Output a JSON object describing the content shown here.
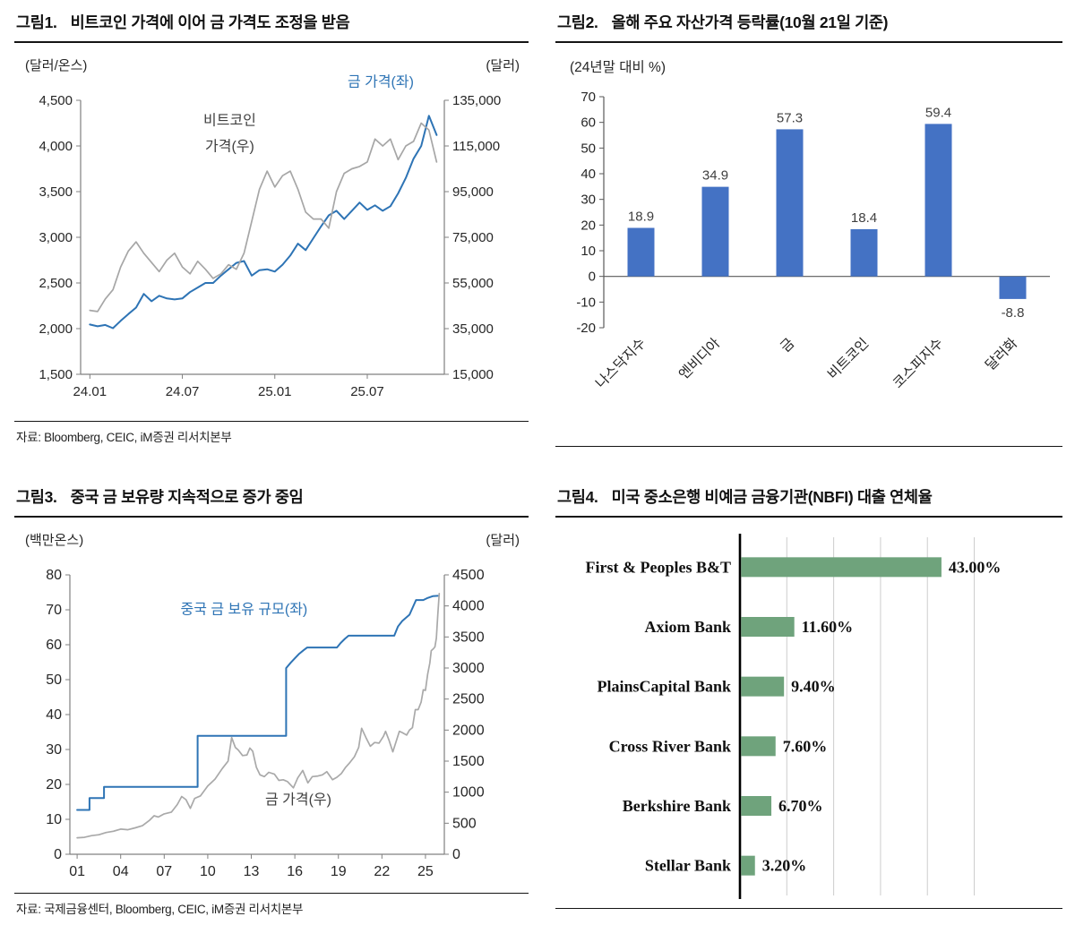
{
  "page": {
    "background": "#ffffff"
  },
  "panels": {
    "fig1": {
      "no": "그림1.",
      "title": "비트코인 가격에 이어 금 가격도 조정을 받음",
      "source": "자료: Bloomberg, CEIC, iM증권 리서치본부"
    },
    "fig2": {
      "no": "그림2.",
      "title": "올해 주요 자산가격 등락률(10월 21일 기준)"
    },
    "fig3": {
      "no": "그림3.",
      "title": "중국 금 보유량 지속적으로 증가 중임",
      "source": "자료: 국제금융센터, Bloomberg, CEIC, iM증권 리서치본부"
    },
    "fig4": {
      "no": "그림4.",
      "title": "미국 중소은행 비예금 금융기관(NBFI) 대출 연체율"
    }
  },
  "chart_data": [
    {
      "id": "fig1",
      "type": "dual_line",
      "title": "비트코인 가격에 이어 금 가격도 조정을 받음",
      "unit_left": "(달러/온스)",
      "unit_right": "(달러)",
      "x_range": [
        -0.6,
        23.0
      ],
      "x_ticks": [
        {
          "t": 0,
          "label": "24.01"
        },
        {
          "t": 6,
          "label": "24.07"
        },
        {
          "t": 12,
          "label": "25.01"
        },
        {
          "t": 18,
          "label": "25.07"
        }
      ],
      "axis_left": {
        "min": 1500,
        "max": 4500,
        "step": 500,
        "format": "comma"
      },
      "axis_right": {
        "min": 15000,
        "max": 135000,
        "step": 20000,
        "format": "comma"
      },
      "series": [
        {
          "name": "금 가격(좌)",
          "axis": "left",
          "color": "#2e74b5",
          "width": 2,
          "x0": 0,
          "dx": 0.5,
          "values": [
            2045,
            2025,
            2040,
            2005,
            2085,
            2160,
            2230,
            2380,
            2300,
            2360,
            2330,
            2320,
            2330,
            2400,
            2450,
            2500,
            2500,
            2580,
            2650,
            2720,
            2740,
            2580,
            2640,
            2650,
            2625,
            2700,
            2800,
            2930,
            2860,
            2990,
            3120,
            3240,
            3290,
            3200,
            3290,
            3380,
            3300,
            3350,
            3290,
            3340,
            3480,
            3650,
            3860,
            4000,
            4330,
            4120
          ]
        },
        {
          "name": "비트코인 가격(우)",
          "axis": "right",
          "color": "#a6a6a6",
          "width": 1.7,
          "x0": 0,
          "dx": 0.5,
          "values": [
            43000,
            42500,
            48000,
            52000,
            62000,
            69000,
            73000,
            68000,
            64000,
            60000,
            65000,
            68000,
            62000,
            59000,
            64500,
            61000,
            57000,
            59000,
            63000,
            61000,
            68000,
            82000,
            96000,
            104000,
            97000,
            102000,
            104000,
            96000,
            86000,
            83000,
            83000,
            79000,
            95000,
            103000,
            105000,
            106000,
            108000,
            118000,
            115000,
            118000,
            109000,
            115000,
            117000,
            125000,
            122000,
            108000
          ]
        }
      ],
      "annotations": [
        {
          "text": "비트코인",
          "color": "#3f3f3f",
          "fx": 0.41,
          "fy": 0.09,
          "size": 16
        },
        {
          "text": "가격(우)",
          "color": "#3f3f3f",
          "fx": 0.41,
          "fy": 0.185,
          "size": 16
        },
        {
          "text": "금 가격(좌)",
          "color": "#2e74b5",
          "fx": 0.825,
          "fy": -0.05,
          "size": 16
        }
      ]
    },
    {
      "id": "fig2",
      "type": "bar",
      "title": "올해 주요 자산가격 등락률(10월 21일 기준)",
      "unit": "(24년말 대비 %)",
      "axis": {
        "min": -20,
        "max": 70,
        "step": 10
      },
      "categories": [
        "나스닥지수",
        "엔비디아",
        "금",
        "비트코인",
        "코스피지수",
        "달러화"
      ],
      "values": [
        18.9,
        34.9,
        57.3,
        18.4,
        59.4,
        -8.8
      ],
      "bar_color": "#4472c4",
      "legend_position": "none",
      "grid": false
    },
    {
      "id": "fig3",
      "type": "dual_line",
      "title": "중국 금 보유량 지속적으로 증가 중임",
      "unit_left": "(백만온스)",
      "unit_right": "(달러)",
      "x_range": [
        2000.5,
        2026.3
      ],
      "x_ticks": [
        {
          "t": 2001,
          "label": "01"
        },
        {
          "t": 2004,
          "label": "04"
        },
        {
          "t": 2007,
          "label": "07"
        },
        {
          "t": 2010,
          "label": "10"
        },
        {
          "t": 2013,
          "label": "13"
        },
        {
          "t": 2016,
          "label": "16"
        },
        {
          "t": 2019,
          "label": "19"
        },
        {
          "t": 2022,
          "label": "22"
        },
        {
          "t": 2025,
          "label": "25"
        }
      ],
      "axis_left": {
        "min": 0,
        "max": 80,
        "step": 10,
        "format": "plain"
      },
      "axis_right": {
        "min": 0,
        "max": 4500,
        "step": 500,
        "format": "plain"
      },
      "series": [
        {
          "name": "중국 금 보유 규모(좌)",
          "axis": "left",
          "color": "#2e74b5",
          "width": 2,
          "points": [
            [
              2001.0,
              12.7
            ],
            [
              2001.85,
              12.7
            ],
            [
              2001.85,
              16.1
            ],
            [
              2002.85,
              16.1
            ],
            [
              2002.85,
              19.3
            ],
            [
              2009.3,
              19.3
            ],
            [
              2009.3,
              33.9
            ],
            [
              2015.4,
              33.9
            ],
            [
              2015.4,
              53.3
            ],
            [
              2015.7,
              54.8
            ],
            [
              2016.0,
              56.1
            ],
            [
              2016.3,
              57.4
            ],
            [
              2016.6,
              58.4
            ],
            [
              2016.85,
              59.2
            ],
            [
              2018.9,
              59.2
            ],
            [
              2019.15,
              60.5
            ],
            [
              2019.45,
              61.7
            ],
            [
              2019.7,
              62.6
            ],
            [
              2022.85,
              62.6
            ],
            [
              2023.1,
              65.2
            ],
            [
              2023.4,
              66.8
            ],
            [
              2023.9,
              68.6
            ],
            [
              2024.35,
              72.8
            ],
            [
              2024.85,
              72.8
            ],
            [
              2025.1,
              73.3
            ],
            [
              2025.5,
              73.9
            ],
            [
              2025.85,
              74.0
            ]
          ]
        },
        {
          "name": "금 가격(우)",
          "axis": "right",
          "color": "#a9a9a9",
          "width": 1.7,
          "points": [
            [
              2001.0,
              265
            ],
            [
              2001.5,
              272
            ],
            [
              2002.0,
              300
            ],
            [
              2002.5,
              315
            ],
            [
              2003.0,
              350
            ],
            [
              2003.5,
              370
            ],
            [
              2004.0,
              405
            ],
            [
              2004.5,
              395
            ],
            [
              2005.0,
              425
            ],
            [
              2005.5,
              460
            ],
            [
              2006.0,
              550
            ],
            [
              2006.3,
              620
            ],
            [
              2006.6,
              600
            ],
            [
              2007.0,
              650
            ],
            [
              2007.5,
              680
            ],
            [
              2007.9,
              800
            ],
            [
              2008.2,
              930
            ],
            [
              2008.5,
              880
            ],
            [
              2008.8,
              740
            ],
            [
              2009.1,
              900
            ],
            [
              2009.5,
              940
            ],
            [
              2010.0,
              1100
            ],
            [
              2010.5,
              1210
            ],
            [
              2011.0,
              1380
            ],
            [
              2011.4,
              1500
            ],
            [
              2011.65,
              1880
            ],
            [
              2011.9,
              1720
            ],
            [
              2012.1,
              1680
            ],
            [
              2012.4,
              1590
            ],
            [
              2012.7,
              1600
            ],
            [
              2012.9,
              1710
            ],
            [
              2013.1,
              1660
            ],
            [
              2013.35,
              1400
            ],
            [
              2013.6,
              1280
            ],
            [
              2013.9,
              1250
            ],
            [
              2014.2,
              1320
            ],
            [
              2014.6,
              1290
            ],
            [
              2014.9,
              1190
            ],
            [
              2015.2,
              1200
            ],
            [
              2015.5,
              1170
            ],
            [
              2015.9,
              1070
            ],
            [
              2016.2,
              1230
            ],
            [
              2016.55,
              1350
            ],
            [
              2016.9,
              1150
            ],
            [
              2017.2,
              1250
            ],
            [
              2017.6,
              1260
            ],
            [
              2017.9,
              1280
            ],
            [
              2018.2,
              1330
            ],
            [
              2018.6,
              1200
            ],
            [
              2018.9,
              1240
            ],
            [
              2019.2,
              1300
            ],
            [
              2019.5,
              1400
            ],
            [
              2019.8,
              1480
            ],
            [
              2020.1,
              1570
            ],
            [
              2020.4,
              1720
            ],
            [
              2020.6,
              2030
            ],
            [
              2020.9,
              1880
            ],
            [
              2021.2,
              1740
            ],
            [
              2021.5,
              1800
            ],
            [
              2021.8,
              1790
            ],
            [
              2022.1,
              1900
            ],
            [
              2022.25,
              1980
            ],
            [
              2022.5,
              1830
            ],
            [
              2022.75,
              1650
            ],
            [
              2023.0,
              1830
            ],
            [
              2023.2,
              1980
            ],
            [
              2023.4,
              1960
            ],
            [
              2023.7,
              1920
            ],
            [
              2023.9,
              2000
            ],
            [
              2024.1,
              2040
            ],
            [
              2024.3,
              2330
            ],
            [
              2024.5,
              2330
            ],
            [
              2024.7,
              2450
            ],
            [
              2024.85,
              2650
            ],
            [
              2025.0,
              2640
            ],
            [
              2025.15,
              2900
            ],
            [
              2025.3,
              3080
            ],
            [
              2025.4,
              3280
            ],
            [
              2025.55,
              3310
            ],
            [
              2025.65,
              3340
            ],
            [
              2025.75,
              3480
            ],
            [
              2025.85,
              3860
            ],
            [
              2025.95,
              4200
            ]
          ]
        }
      ],
      "annotations": [
        {
          "text": "중국 금 보유 규모(좌)",
          "color": "#2e74b5",
          "fx": 0.465,
          "fy": 0.14,
          "size": 16
        },
        {
          "text": "금 가격(우)",
          "color": "#3f3f3f",
          "fx": 0.61,
          "fy": 0.82,
          "size": 16
        }
      ]
    },
    {
      "id": "fig4",
      "type": "hbar",
      "title": "미국 중소은행 비예금 금융기관(NBFI) 대출 연체율",
      "categories": [
        "First & Peoples B&T",
        "Axiom Bank",
        "PlainsCapital Bank",
        "Cross River Bank",
        "Berkshire Bank",
        "Stellar Bank"
      ],
      "values": [
        43.0,
        11.6,
        9.4,
        7.6,
        6.7,
        3.2
      ],
      "value_suffix": "%",
      "max": 52,
      "gridlines": [
        10,
        20,
        30,
        40,
        50
      ],
      "bar_color": "#6fa37c",
      "grid": true
    }
  ]
}
